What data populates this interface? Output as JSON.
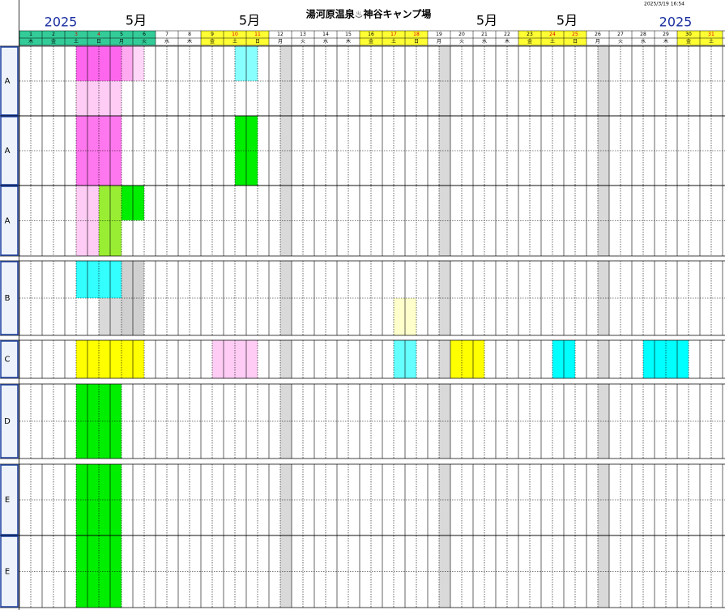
{
  "header": {
    "title": "湯河原温泉♨神谷キャンプ場",
    "timestamp": "2025/3/19 16:54",
    "year_labels": [
      "2025",
      "2025"
    ],
    "month_labels": [
      "5月",
      "5月",
      "5月",
      "5月"
    ]
  },
  "calendar": {
    "days": [
      "1",
      "2",
      "3",
      "4",
      "5",
      "6",
      "7",
      "8",
      "9",
      "10",
      "11",
      "12",
      "13",
      "14",
      "15",
      "16",
      "17",
      "18",
      "19",
      "20",
      "21",
      "22",
      "23",
      "24",
      "25",
      "26",
      "27",
      "28",
      "29",
      "30",
      "31"
    ],
    "weekdays": [
      "木",
      "金",
      "土",
      "日",
      "月",
      "火",
      "水",
      "木",
      "金",
      "土",
      "日",
      "月",
      "火",
      "水",
      "木",
      "金",
      "土",
      "日",
      "月",
      "火",
      "水",
      "木",
      "金",
      "土",
      "日",
      "月",
      "火",
      "水",
      "木",
      "金",
      "土"
    ]
  },
  "rows": [
    "A",
    "A",
    "A",
    "B",
    "C",
    "D",
    "E",
    "E"
  ]
}
